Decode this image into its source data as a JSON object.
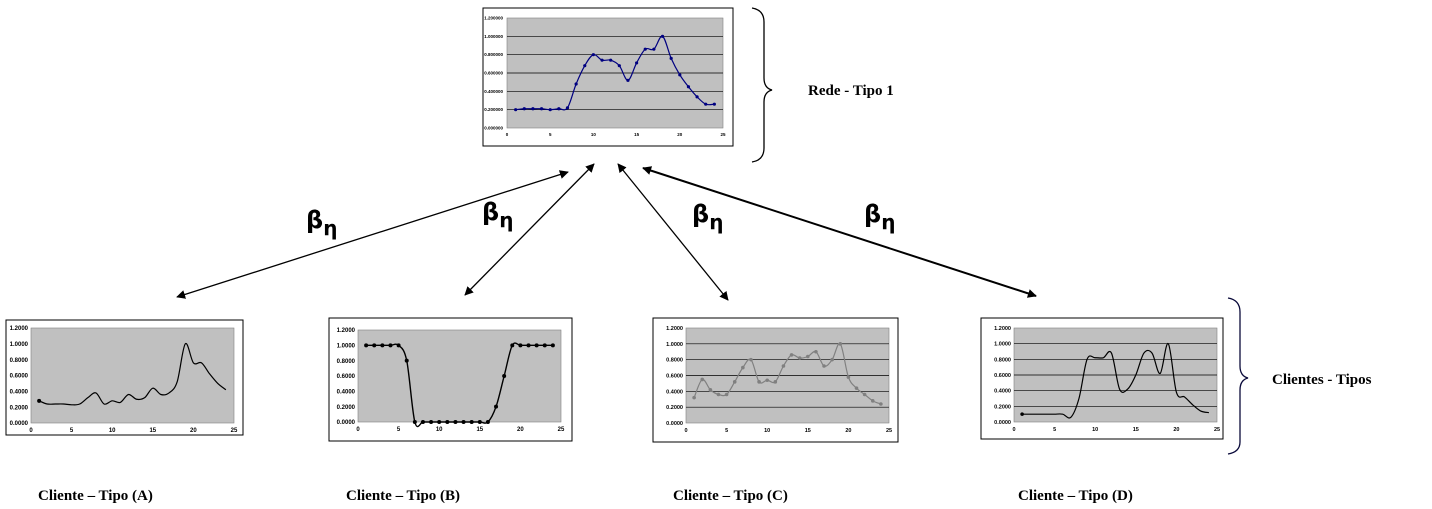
{
  "labels": {
    "rede": "Rede - Tipo 1",
    "clientes": "Clientes - Tipos",
    "beta_symbol": "β",
    "beta_subscript": "η",
    "caption_a": "Cliente – Tipo (A)",
    "caption_b": "Cliente – Tipo (B)",
    "caption_c": "Cliente – Tipo (C)",
    "caption_d": "Cliente – Tipo (D)"
  },
  "colors": {
    "plot_area": "#c0c0c0",
    "rede_line": "#000080",
    "client_line": "#000000",
    "client_c_line": "#808080"
  },
  "chart_data": [
    {
      "id": "rede",
      "type": "line",
      "title": "",
      "xlabel": "",
      "ylabel": "",
      "xlim": [
        0,
        25
      ],
      "ylim": [
        0,
        1.2
      ],
      "x_ticks": [
        "0",
        "5",
        "10",
        "15",
        "20",
        "25"
      ],
      "y_ticks": [
        "0.000000",
        "0.200000",
        "0.400000",
        "0.600000",
        "0.800000",
        "1.000000",
        "1.200000"
      ],
      "grid": true,
      "markers": true,
      "x": [
        1,
        2,
        3,
        4,
        5,
        6,
        7,
        8,
        9,
        10,
        11,
        12,
        13,
        14,
        15,
        16,
        17,
        18,
        19,
        20,
        21,
        22,
        23,
        24
      ],
      "y": [
        0.2,
        0.21,
        0.21,
        0.21,
        0.2,
        0.21,
        0.22,
        0.48,
        0.68,
        0.8,
        0.74,
        0.74,
        0.68,
        0.52,
        0.71,
        0.86,
        0.86,
        1.0,
        0.76,
        0.58,
        0.45,
        0.34,
        0.26,
        0.26
      ]
    },
    {
      "id": "a",
      "type": "line",
      "title": "",
      "xlabel": "",
      "ylabel": "",
      "xlim": [
        0,
        25
      ],
      "ylim": [
        0,
        1.2
      ],
      "x_ticks": [
        "0",
        "5",
        "10",
        "15",
        "20",
        "25"
      ],
      "y_ticks": [
        "0.0000",
        "0.2000",
        "0.4000",
        "0.6000",
        "0.8000",
        "1.0000",
        "1.2000"
      ],
      "grid": false,
      "markers": "first-only",
      "x": [
        1,
        2,
        3,
        4,
        5,
        6,
        7,
        8,
        9,
        10,
        11,
        12,
        13,
        14,
        15,
        16,
        17,
        18,
        19,
        20,
        21,
        22,
        23,
        24
      ],
      "y": [
        0.28,
        0.24,
        0.24,
        0.24,
        0.23,
        0.24,
        0.32,
        0.38,
        0.24,
        0.28,
        0.26,
        0.36,
        0.3,
        0.32,
        0.44,
        0.36,
        0.38,
        0.52,
        1.0,
        0.76,
        0.76,
        0.62,
        0.5,
        0.42
      ]
    },
    {
      "id": "b",
      "type": "line",
      "title": "",
      "xlabel": "",
      "ylabel": "",
      "xlim": [
        0,
        25
      ],
      "ylim": [
        0,
        1.2
      ],
      "x_ticks": [
        "0",
        "5",
        "10",
        "15",
        "20",
        "25"
      ],
      "y_ticks": [
        "0.0000",
        "0.2000",
        "0.4000",
        "0.6000",
        "0.8000",
        "1.0000",
        "1.2000"
      ],
      "grid": false,
      "markers": true,
      "x": [
        1,
        2,
        3,
        4,
        5,
        6,
        7,
        8,
        9,
        10,
        11,
        12,
        13,
        14,
        15,
        16,
        17,
        18,
        19,
        20,
        21,
        22,
        23,
        24
      ],
      "y": [
        1,
        1,
        1,
        1,
        1,
        0.8,
        0,
        0,
        0,
        0,
        0,
        0,
        0,
        0,
        0,
        0,
        0.2,
        0.6,
        1,
        1,
        1,
        1,
        1,
        1
      ]
    },
    {
      "id": "c",
      "type": "line",
      "title": "",
      "xlabel": "",
      "ylabel": "",
      "xlim": [
        0,
        25
      ],
      "ylim": [
        0,
        1.2
      ],
      "x_ticks": [
        "0",
        "5",
        "10",
        "15",
        "20",
        "25"
      ],
      "y_ticks": [
        "0.0000",
        "0.2000",
        "0.4000",
        "0.6000",
        "0.8000",
        "1.0000",
        "1.2000"
      ],
      "grid": true,
      "markers": true,
      "x": [
        1,
        2,
        3,
        4,
        5,
        6,
        7,
        8,
        9,
        10,
        11,
        12,
        13,
        14,
        15,
        16,
        17,
        18,
        19,
        20,
        21,
        22,
        23,
        24
      ],
      "y": [
        0.32,
        0.55,
        0.42,
        0.36,
        0.36,
        0.52,
        0.7,
        0.8,
        0.52,
        0.54,
        0.52,
        0.72,
        0.86,
        0.82,
        0.84,
        0.9,
        0.72,
        0.8,
        1.0,
        0.58,
        0.44,
        0.36,
        0.28,
        0.24
      ]
    },
    {
      "id": "d",
      "type": "line",
      "title": "",
      "xlabel": "",
      "ylabel": "",
      "xlim": [
        0,
        25
      ],
      "ylim": [
        0,
        1.2
      ],
      "x_ticks": [
        "0",
        "5",
        "10",
        "15",
        "20",
        "25"
      ],
      "y_ticks": [
        "0.0000",
        "0.2000",
        "0.4000",
        "0.6000",
        "0.8000",
        "1.0000",
        "1.2000"
      ],
      "grid": true,
      "markers": "first-only",
      "x": [
        1,
        2,
        3,
        4,
        5,
        6,
        7,
        8,
        9,
        10,
        11,
        12,
        13,
        14,
        15,
        16,
        17,
        18,
        19,
        20,
        21,
        22,
        23,
        24
      ],
      "y": [
        0.1,
        0.1,
        0.1,
        0.1,
        0.1,
        0.1,
        0.06,
        0.3,
        0.8,
        0.82,
        0.82,
        0.88,
        0.42,
        0.42,
        0.6,
        0.88,
        0.88,
        0.62,
        1.0,
        0.38,
        0.32,
        0.22,
        0.14,
        0.12
      ]
    }
  ]
}
